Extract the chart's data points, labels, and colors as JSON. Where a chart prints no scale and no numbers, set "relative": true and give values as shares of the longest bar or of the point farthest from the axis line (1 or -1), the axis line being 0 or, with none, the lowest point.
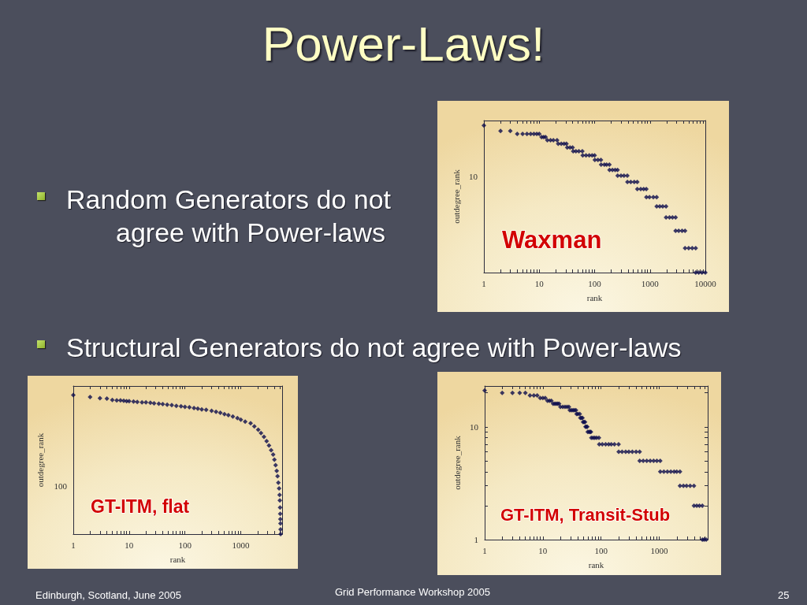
{
  "chart_data": [
    {
      "type": "other",
      "title": "Power-Laws!",
      "annotations": [
        "Random Generators do not agree with Power-laws",
        "Structural Generators do not agree with Power-laws",
        "Edinburgh, Scotland, June 2005",
        "Grid Performance Workshop 2005",
        "25"
      ]
    },
    {
      "type": "scatter",
      "title": "Waxman",
      "xlabel": "rank",
      "ylabel": "outdegree_rank",
      "log": "x",
      "marker": "diamond",
      "color": "#0c0c4c",
      "relative": true,
      "annotations": [
        "10"
      ],
      "x": [
        1,
        2,
        3,
        4,
        5,
        6,
        7,
        8,
        9,
        10,
        11,
        12,
        13,
        14,
        16,
        18,
        21,
        22,
        25,
        28,
        31,
        32,
        36,
        40,
        41,
        46,
        52,
        60,
        61,
        70,
        80,
        90,
        100,
        101,
        115,
        130,
        131,
        150,
        165,
        185,
        186,
        210,
        235,
        260,
        261,
        300,
        340,
        390,
        391,
        450,
        520,
        590,
        591,
        680,
        770,
        860,
        861,
        980,
        1150,
        1320,
        1321,
        1500,
        1700,
        1950,
        1951,
        2250,
        2550,
        2900,
        2901,
        3300,
        3800,
        4300,
        4301,
        5000,
        5800,
        6700,
        6701,
        7600,
        8700,
        10000
      ],
      "values": [
        1,
        0.963,
        0.963,
        0.943,
        0.943,
        0.943,
        0.943,
        0.943,
        0.943,
        0.943,
        0.922,
        0.922,
        0.922,
        0.9,
        0.9,
        0.9,
        0.9,
        0.876,
        0.876,
        0.876,
        0.876,
        0.851,
        0.851,
        0.851,
        0.825,
        0.825,
        0.825,
        0.825,
        0.797,
        0.797,
        0.797,
        0.797,
        0.797,
        0.766,
        0.766,
        0.766,
        0.734,
        0.734,
        0.734,
        0.734,
        0.698,
        0.698,
        0.698,
        0.698,
        0.659,
        0.659,
        0.659,
        0.659,
        0.616,
        0.616,
        0.616,
        0.616,
        0.568,
        0.568,
        0.568,
        0.568,
        0.513,
        0.513,
        0.513,
        0.513,
        0.45,
        0.45,
        0.45,
        0.45,
        0.375,
        0.375,
        0.375,
        0.375,
        0.284,
        0.284,
        0.284,
        0.284,
        0.166,
        0.166,
        0.166,
        0.166,
        0,
        0,
        0,
        0
      ],
      "xlim": [
        1,
        10000
      ],
      "xticks": [
        1,
        {
          "value": 2,
          "label": null
        },
        {
          "value": 3,
          "label": null
        },
        {
          "value": 4,
          "label": null
        },
        {
          "value": 5,
          "label": null
        },
        {
          "value": 6,
          "label": null
        },
        {
          "value": 7,
          "label": null
        },
        {
          "value": 8,
          "label": null
        },
        {
          "value": 9,
          "label": null
        },
        10,
        {
          "value": 20,
          "label": null
        },
        {
          "value": 30,
          "label": null
        },
        {
          "value": 40,
          "label": null
        },
        {
          "value": 50,
          "label": null
        },
        {
          "value": 60,
          "label": null
        },
        {
          "value": 70,
          "label": null
        },
        {
          "value": 80,
          "label": null
        },
        {
          "value": 90,
          "label": null
        },
        100,
        {
          "value": 200,
          "label": null
        },
        {
          "value": 300,
          "label": null
        },
        {
          "value": 400,
          "label": null
        },
        {
          "value": 500,
          "label": null
        },
        {
          "value": 600,
          "label": null
        },
        {
          "value": 700,
          "label": null
        },
        {
          "value": 800,
          "label": null
        },
        {
          "value": 900,
          "label": null
        },
        1000,
        {
          "value": 2000,
          "label": null
        },
        {
          "value": 3000,
          "label": null
        },
        {
          "value": 4000,
          "label": null
        },
        {
          "value": 5000,
          "label": null
        },
        {
          "value": 6000,
          "label": null
        },
        {
          "value": 7000,
          "label": null
        },
        {
          "value": 8000,
          "label": null
        },
        {
          "value": 9000,
          "label": null
        },
        10000
      ]
    },
    {
      "type": "scatter",
      "title": "GT-ITM, flat",
      "xlabel": "rank",
      "ylabel": "outdegree_rank",
      "log": "x",
      "marker": "diamond",
      "color": "#0c0c4c",
      "relative": true,
      "annotations": [
        "100"
      ],
      "x": [
        1,
        2,
        3,
        4,
        5,
        6,
        7,
        8,
        9,
        10,
        12,
        14,
        17,
        20,
        24,
        28,
        34,
        40,
        48,
        58,
        70,
        85,
        100,
        120,
        145,
        170,
        200,
        240,
        300,
        360,
        430,
        510,
        600,
        720,
        870,
        1000,
        1200,
        1500,
        1750,
        2050,
        2300,
        2600,
        2900,
        3200,
        3500,
        3800,
        4000,
        4200,
        4400,
        4550,
        4700,
        4850,
        4950,
        5000,
        5050,
        5080,
        5110,
        5130,
        5150,
        5160
      ],
      "values": [
        1,
        0.986,
        0.977,
        0.974,
        0.965,
        0.962,
        0.962,
        0.959,
        0.956,
        0.956,
        0.953,
        0.95,
        0.947,
        0.947,
        0.944,
        0.941,
        0.937,
        0.934,
        0.931,
        0.928,
        0.922,
        0.919,
        0.915,
        0.912,
        0.906,
        0.902,
        0.896,
        0.893,
        0.886,
        0.879,
        0.872,
        0.862,
        0.855,
        0.845,
        0.834,
        0.823,
        0.808,
        0.797,
        0.774,
        0.75,
        0.726,
        0.7,
        0.669,
        0.637,
        0.603,
        0.572,
        0.535,
        0.496,
        0.454,
        0.416,
        0.37,
        0.328,
        0.282,
        0.242,
        0.191,
        0.146,
        0.107,
        0.076,
        0.034,
        0
      ],
      "xlim": [
        1,
        5500
      ],
      "xticks": [
        1,
        {
          "value": 2,
          "label": null
        },
        {
          "value": 3,
          "label": null
        },
        {
          "value": 4,
          "label": null
        },
        {
          "value": 5,
          "label": null
        },
        {
          "value": 6,
          "label": null
        },
        {
          "value": 7,
          "label": null
        },
        {
          "value": 8,
          "label": null
        },
        {
          "value": 9,
          "label": null
        },
        10,
        {
          "value": 20,
          "label": null
        },
        {
          "value": 30,
          "label": null
        },
        {
          "value": 40,
          "label": null
        },
        {
          "value": 50,
          "label": null
        },
        {
          "value": 60,
          "label": null
        },
        {
          "value": 70,
          "label": null
        },
        {
          "value": 80,
          "label": null
        },
        {
          "value": 90,
          "label": null
        },
        100,
        {
          "value": 200,
          "label": null
        },
        {
          "value": 300,
          "label": null
        },
        {
          "value": 400,
          "label": null
        },
        {
          "value": 500,
          "label": null
        },
        {
          "value": 600,
          "label": null
        },
        {
          "value": 700,
          "label": null
        },
        {
          "value": 800,
          "label": null
        },
        {
          "value": 900,
          "label": null
        },
        1000,
        {
          "value": 2000,
          "label": null
        },
        {
          "value": 3000,
          "label": null
        },
        {
          "value": 4000,
          "label": null
        },
        {
          "value": 5000,
          "label": null
        }
      ]
    },
    {
      "type": "scatter",
      "title": "GT-ITM, Transit-Stub",
      "xlabel": "rank",
      "ylabel": "outdegree_rank",
      "log": "xy",
      "marker": "diamond",
      "color": "#0c0c4c",
      "x": [
        1,
        2,
        3,
        4,
        5,
        6,
        7,
        8,
        9,
        10,
        11,
        12,
        13,
        14,
        15,
        16,
        17,
        18,
        19,
        20,
        22,
        24,
        26,
        28,
        29,
        31,
        33,
        35,
        37,
        38,
        40,
        43,
        44,
        46,
        48,
        49,
        51,
        53,
        54,
        56,
        58,
        59,
        62,
        65,
        67,
        68,
        73,
        78,
        84,
        92,
        93,
        105,
        120,
        135,
        150,
        170,
        200,
        201,
        230,
        265,
        300,
        345,
        400,
        460,
        461,
        530,
        610,
        700,
        800,
        910,
        1040,
        1041,
        1200,
        1380,
        1580,
        1800,
        2000,
        2270,
        2271,
        2600,
        2950,
        3400,
        3950,
        3951,
        4400,
        4900,
        5500,
        5501,
        5900,
        6400
      ],
      "values": [
        21,
        20,
        20,
        20,
        20,
        19,
        19,
        19,
        18,
        18,
        18,
        17,
        17,
        17,
        16,
        16,
        16,
        16,
        16,
        15,
        15,
        15,
        15,
        15,
        14,
        14,
        14,
        14,
        14,
        13,
        13,
        13,
        12,
        12,
        12,
        11,
        11,
        11,
        10,
        10,
        10,
        9,
        9,
        9,
        9,
        8,
        8,
        8,
        8,
        8,
        7,
        7,
        7,
        7,
        7,
        7,
        7,
        6,
        6,
        6,
        6,
        6,
        6,
        6,
        5,
        5,
        5,
        5,
        5,
        5,
        5,
        4,
        4,
        4,
        4,
        4,
        4,
        4,
        3,
        3,
        3,
        3,
        3,
        2,
        2,
        2,
        2,
        1,
        1,
        1
      ],
      "xlim": [
        1,
        6800
      ],
      "ylim": [
        1,
        23
      ],
      "xticks": [
        1,
        {
          "value": 2,
          "label": null
        },
        {
          "value": 3,
          "label": null
        },
        {
          "value": 4,
          "label": null
        },
        {
          "value": 5,
          "label": null
        },
        {
          "value": 6,
          "label": null
        },
        {
          "value": 7,
          "label": null
        },
        {
          "value": 8,
          "label": null
        },
        {
          "value": 9,
          "label": null
        },
        10,
        {
          "value": 20,
          "label": null
        },
        {
          "value": 30,
          "label": null
        },
        {
          "value": 40,
          "label": null
        },
        {
          "value": 50,
          "label": null
        },
        {
          "value": 60,
          "label": null
        },
        {
          "value": 70,
          "label": null
        },
        {
          "value": 80,
          "label": null
        },
        {
          "value": 90,
          "label": null
        },
        100,
        {
          "value": 200,
          "label": null
        },
        {
          "value": 300,
          "label": null
        },
        {
          "value": 400,
          "label": null
        },
        {
          "value": 500,
          "label": null
        },
        {
          "value": 600,
          "label": null
        },
        {
          "value": 700,
          "label": null
        },
        {
          "value": 800,
          "label": null
        },
        {
          "value": 900,
          "label": null
        },
        1000,
        {
          "value": 2000,
          "label": null
        },
        {
          "value": 3000,
          "label": null
        },
        {
          "value": 4000,
          "label": null
        },
        {
          "value": 5000,
          "label": null
        },
        {
          "value": 6000,
          "label": null
        }
      ],
      "yticks": [
        1,
        {
          "value": 2,
          "label": null
        },
        {
          "value": 3,
          "label": null
        },
        {
          "value": 4,
          "label": null
        },
        {
          "value": 5,
          "label": null
        },
        {
          "value": 6,
          "label": null
        },
        {
          "value": 7,
          "label": null
        },
        {
          "value": 8,
          "label": null
        },
        {
          "value": 9,
          "label": null
        },
        10,
        {
          "value": 20,
          "label": null
        }
      ]
    }
  ]
}
